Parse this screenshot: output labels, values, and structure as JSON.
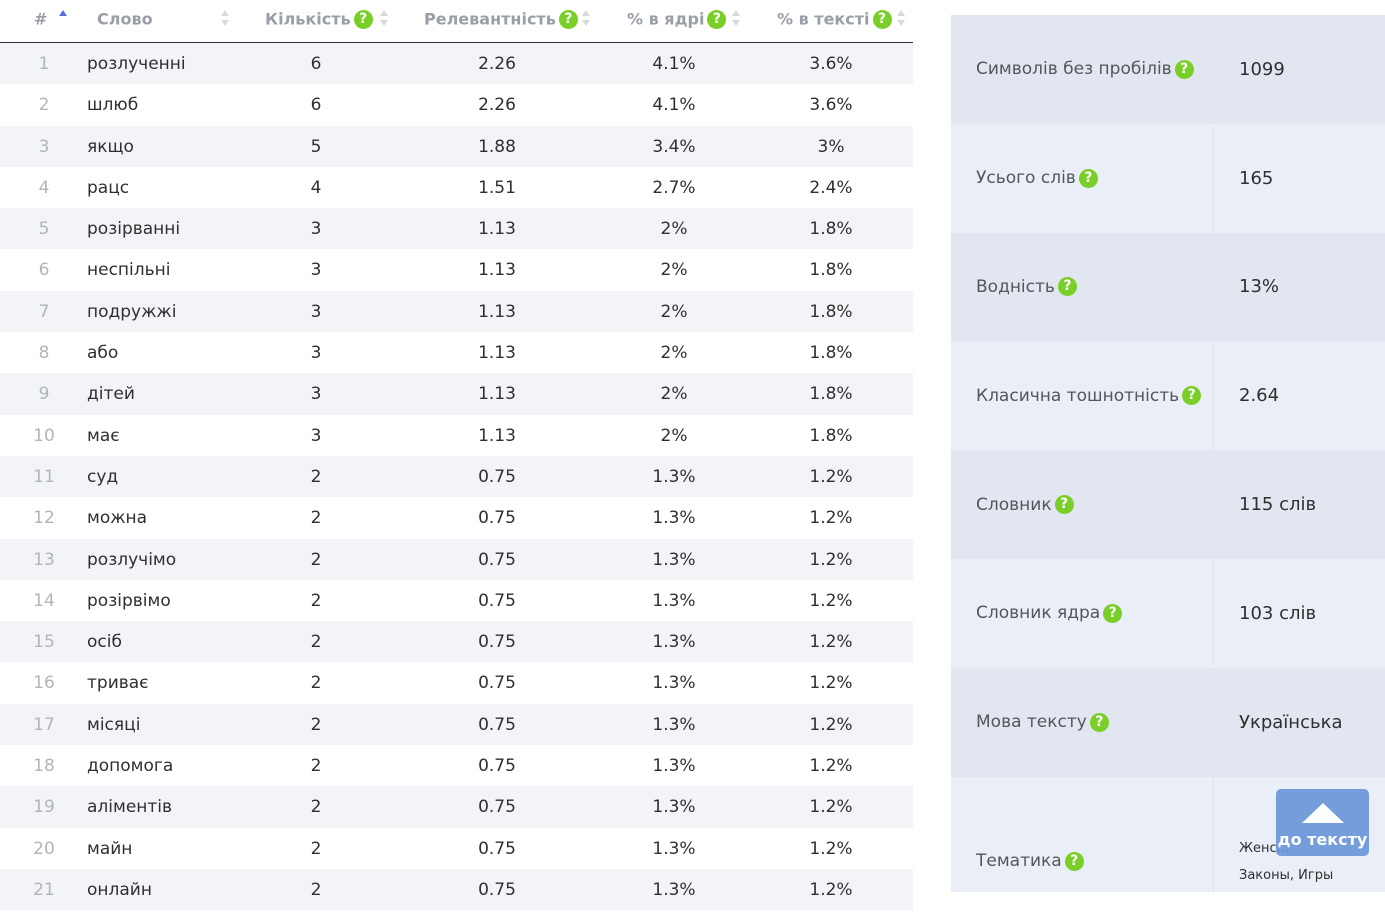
{
  "table": {
    "headers": {
      "num": "#",
      "word": "Слово",
      "count": "Кількість",
      "relevance": "Релевантність",
      "core_pct": "% в ядрі",
      "text_pct": "% в тексті"
    },
    "help_glyph": "?",
    "rows": [
      {
        "n": "1",
        "word": "розлученні",
        "count": "6",
        "rel": "2.26",
        "core": "4.1%",
        "text": "3.6%"
      },
      {
        "n": "2",
        "word": "шлюб",
        "count": "6",
        "rel": "2.26",
        "core": "4.1%",
        "text": "3.6%"
      },
      {
        "n": "3",
        "word": "якщо",
        "count": "5",
        "rel": "1.88",
        "core": "3.4%",
        "text": "3%"
      },
      {
        "n": "4",
        "word": "рацс",
        "count": "4",
        "rel": "1.51",
        "core": "2.7%",
        "text": "2.4%"
      },
      {
        "n": "5",
        "word": "розірванні",
        "count": "3",
        "rel": "1.13",
        "core": "2%",
        "text": "1.8%"
      },
      {
        "n": "6",
        "word": "неспільні",
        "count": "3",
        "rel": "1.13",
        "core": "2%",
        "text": "1.8%"
      },
      {
        "n": "7",
        "word": "подружжі",
        "count": "3",
        "rel": "1.13",
        "core": "2%",
        "text": "1.8%"
      },
      {
        "n": "8",
        "word": "або",
        "count": "3",
        "rel": "1.13",
        "core": "2%",
        "text": "1.8%"
      },
      {
        "n": "9",
        "word": "дітей",
        "count": "3",
        "rel": "1.13",
        "core": "2%",
        "text": "1.8%"
      },
      {
        "n": "10",
        "word": "має",
        "count": "3",
        "rel": "1.13",
        "core": "2%",
        "text": "1.8%"
      },
      {
        "n": "11",
        "word": "суд",
        "count": "2",
        "rel": "0.75",
        "core": "1.3%",
        "text": "1.2%"
      },
      {
        "n": "12",
        "word": "можна",
        "count": "2",
        "rel": "0.75",
        "core": "1.3%",
        "text": "1.2%"
      },
      {
        "n": "13",
        "word": "розлучімо",
        "count": "2",
        "rel": "0.75",
        "core": "1.3%",
        "text": "1.2%"
      },
      {
        "n": "14",
        "word": "розірвімо",
        "count": "2",
        "rel": "0.75",
        "core": "1.3%",
        "text": "1.2%"
      },
      {
        "n": "15",
        "word": "осіб",
        "count": "2",
        "rel": "0.75",
        "core": "1.3%",
        "text": "1.2%"
      },
      {
        "n": "16",
        "word": "триває",
        "count": "2",
        "rel": "0.75",
        "core": "1.3%",
        "text": "1.2%"
      },
      {
        "n": "17",
        "word": "місяці",
        "count": "2",
        "rel": "0.75",
        "core": "1.3%",
        "text": "1.2%"
      },
      {
        "n": "18",
        "word": "допомога",
        "count": "2",
        "rel": "0.75",
        "core": "1.3%",
        "text": "1.2%"
      },
      {
        "n": "19",
        "word": "аліментів",
        "count": "2",
        "rel": "0.75",
        "core": "1.3%",
        "text": "1.2%"
      },
      {
        "n": "20",
        "word": "майн",
        "count": "2",
        "rel": "0.75",
        "core": "1.3%",
        "text": "1.2%"
      },
      {
        "n": "21",
        "word": "онлайн",
        "count": "2",
        "rel": "0.75",
        "core": "1.3%",
        "text": "1.2%"
      }
    ]
  },
  "stats": [
    {
      "label": "Символів без пробілів",
      "value": "1099"
    },
    {
      "label": "Усього слів",
      "value": "165"
    },
    {
      "label": "Водність",
      "value": "13%"
    },
    {
      "label": "Класична тошнотність",
      "value": "2.64"
    },
    {
      "label": "Словник",
      "value": "115 слів"
    },
    {
      "label": "Словник ядра",
      "value": "103 слів"
    },
    {
      "label": "Мова тексту",
      "value": "Українська"
    }
  ],
  "theme": {
    "label": "Тематика",
    "value_line1": "Женс...",
    "value_line2": "Законы, Игры"
  },
  "to_text_button": {
    "label": "до тексту"
  },
  "colors": {
    "help_icon": "#79cf28",
    "sort_active": "#5b6be0",
    "row_stripe": "#f2f4f8",
    "stats_bg": "#eaeef6",
    "button_bg": "#6491d7"
  }
}
